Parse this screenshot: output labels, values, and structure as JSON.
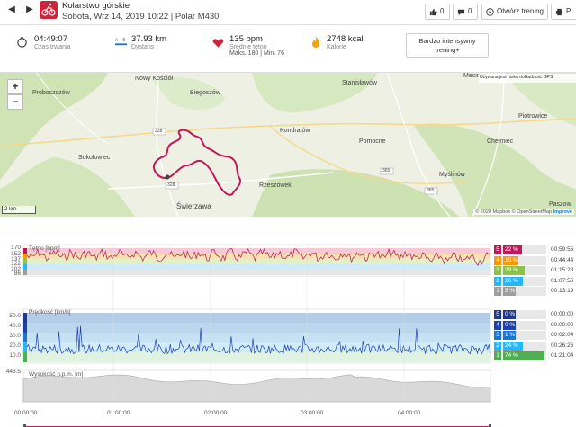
{
  "header": {
    "title": "Kolarstwo górskie",
    "subtitle": "Sobota, Wrz 14, 2019 10:22 | Polar M430",
    "like_count": "0",
    "comment_count": "0",
    "open_training_label": "Otwórz trening",
    "print_label": "P",
    "sport_color": "#d0223b"
  },
  "summary": {
    "duration_value": "04:49:07",
    "duration_label": "Czas trwania",
    "distance_value": "37.93 km",
    "distance_label": "Dystans",
    "hr_value": "135 bpm",
    "hr_label": "Średnie tętno",
    "hr_minmax": "Maks. 180  |  Min. 76",
    "calories_value": "2748 kcal",
    "calories_label": "Kalorie",
    "intensity_label": "Bardzo intensywny trening+"
  },
  "map": {
    "places": [
      "Nowy Kościół",
      "Proboszczów",
      "Biegoszów",
      "Mecinka",
      "Stanisławów",
      "Sokołowiec",
      "Kondratów",
      "Pomocne",
      "Chełmiec",
      "Piotrowice",
      "Myślinów",
      "Rzeszówek",
      "Świerzawa",
      "Paszow"
    ],
    "roads": [
      "328",
      "328",
      "365",
      "365"
    ],
    "zoom_in": "+",
    "zoom_out": "−",
    "scale_label": "2 km",
    "attribution": "© 2020 Mapbox © OpenStreetMap",
    "attribution_strong": "Improve",
    "gps_note": "Używana jest niska dokładność GPS",
    "route_color": "#c2185b"
  },
  "charts": {
    "hr": {
      "label": "Tętno [bpm]",
      "yticks": [
        "170",
        "152",
        "137",
        "122",
        "102",
        "86"
      ],
      "zones": [
        {
          "zone": "5",
          "pct": "22 %",
          "time": "00:59:55",
          "color": "#c2185b",
          "fraction": 0.22
        },
        {
          "zone": "4",
          "pct": "15 %",
          "time": "00:44:44",
          "color": "#ff9800",
          "fraction": 0.15
        },
        {
          "zone": "3",
          "pct": "29 %",
          "time": "01:15:28",
          "color": "#8bc34a",
          "fraction": 0.29
        },
        {
          "zone": "2",
          "pct": "26 %",
          "time": "01:07:56",
          "color": "#29b6f6",
          "fraction": 0.26
        },
        {
          "zone": "1",
          "pct": "5 %",
          "time": "00:13:19",
          "color": "#9e9e9e",
          "fraction": 0.05
        }
      ]
    },
    "speed": {
      "label": "Prędkość [km/h]",
      "yticks": [
        "50.0",
        "40.0",
        "30.0",
        "20.0",
        "10.0"
      ],
      "zones": [
        {
          "zone": "5",
          "pct": "0 %",
          "time": "00:00:00",
          "color": "#1e3a8a",
          "fraction": 0.0
        },
        {
          "zone": "4",
          "pct": "0 %",
          "time": "00:00:00",
          "color": "#1e40af",
          "fraction": 0.0
        },
        {
          "zone": "3",
          "pct": "1 %",
          "time": "00:02:04",
          "color": "#1976d2",
          "fraction": 0.01
        },
        {
          "zone": "2",
          "pct": "24 %",
          "time": "00:26:26",
          "color": "#29b6f6",
          "fraction": 0.24
        },
        {
          "zone": "1",
          "pct": "74 %",
          "time": "01:21:04",
          "color": "#4caf50",
          "fraction": 0.74
        }
      ]
    },
    "altitude": {
      "label": "Wysokość n.p.m. [m]",
      "ytick": "448.5"
    },
    "xticks": [
      "00:00:00",
      "01:00:00",
      "02:00:00",
      "03:00:00",
      "04:00:00"
    ]
  }
}
